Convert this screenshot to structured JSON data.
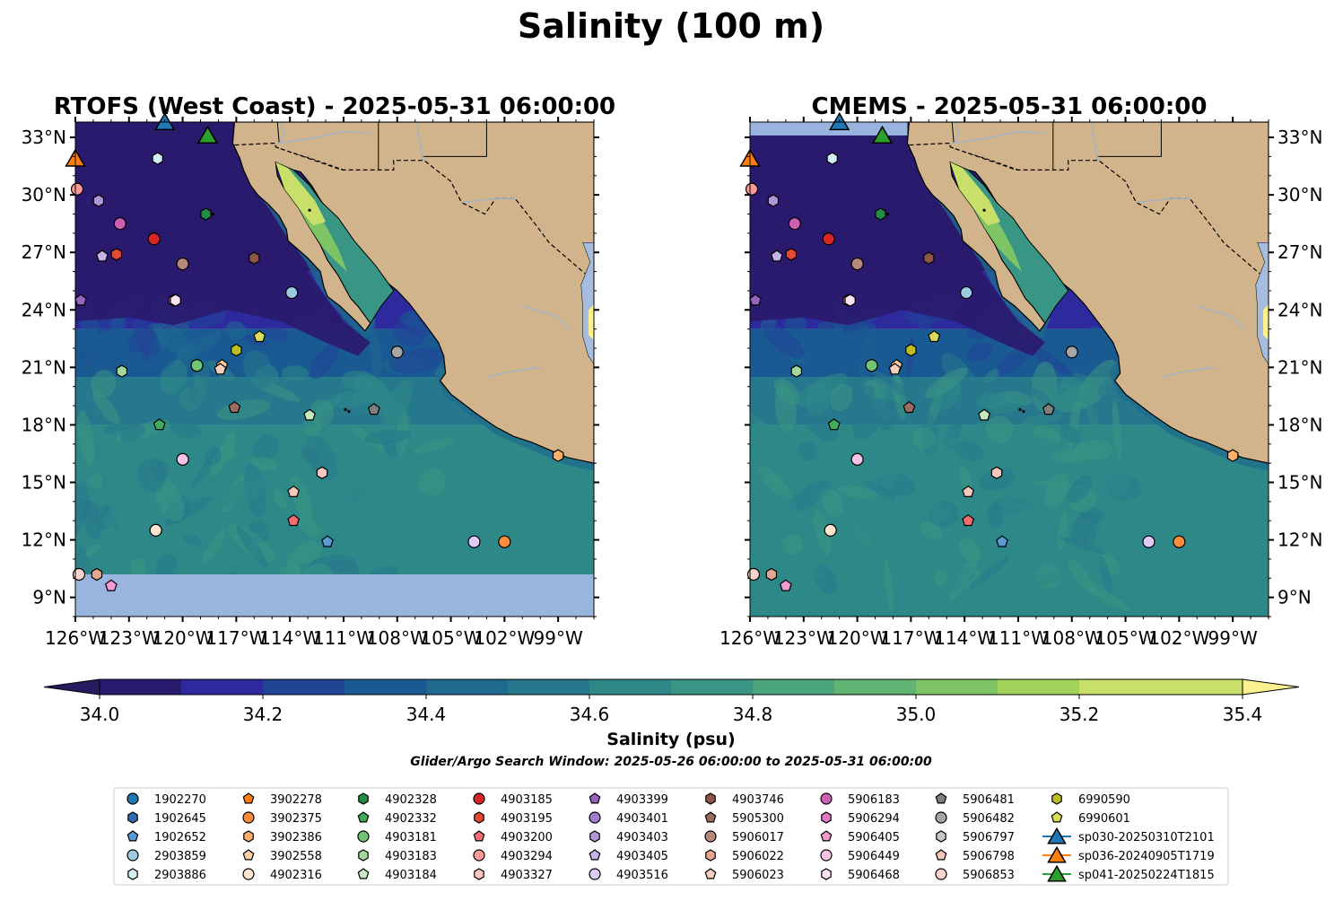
{
  "figure": {
    "title": "Salinity (100 m)",
    "search_window": "Glider/Argo Search Window: 2025-05-26 06:00:00 to 2025-05-31 06:00:00"
  },
  "chart_data": [
    {
      "type": "heatmap",
      "title": "RTOFS (West Coast) - 2025-05-31 06:00:00",
      "xlim": [
        -126,
        -97
      ],
      "ylim": [
        8,
        33.8
      ],
      "x_ticks": [
        "126°W",
        "123°W",
        "120°W",
        "117°W",
        "114°W",
        "111°W",
        "108°W",
        "105°W",
        "102°W",
        "99°W"
      ],
      "x_tick_values": [
        -126,
        -123,
        -120,
        -117,
        -114,
        -111,
        -108,
        -105,
        -102,
        -99
      ],
      "y_ticks": [
        "9°N",
        "12°N",
        "15°N",
        "18°N",
        "21°N",
        "24°N",
        "27°N",
        "30°N",
        "33°N"
      ],
      "y_tick_values": [
        9,
        12,
        15,
        18,
        21,
        24,
        27,
        30,
        33
      ],
      "y_tick_side": "left",
      "no_data_south_of": 10.2
    },
    {
      "type": "heatmap",
      "title": "CMEMS - 2025-05-31 06:00:00",
      "xlim": [
        -126,
        -97
      ],
      "ylim": [
        8,
        33.8
      ],
      "x_ticks": [
        "126°W",
        "123°W",
        "120°W",
        "117°W",
        "114°W",
        "111°W",
        "108°W",
        "105°W",
        "102°W",
        "99°W"
      ],
      "x_tick_values": [
        -126,
        -123,
        -120,
        -117,
        -114,
        -111,
        -108,
        -105,
        -102,
        -99
      ],
      "y_ticks": [
        "9°N",
        "12°N",
        "15°N",
        "18°N",
        "21°N",
        "24°N",
        "27°N",
        "30°N",
        "33°N"
      ],
      "y_tick_values": [
        9,
        12,
        15,
        18,
        21,
        24,
        27,
        30,
        33
      ],
      "y_tick_side": "right",
      "no_data_north_of": 33.1
    }
  ],
  "colorbar": {
    "label": "Salinity (psu)",
    "min": 34.0,
    "max": 35.4,
    "step": 0.1,
    "tick_labels": [
      "34.0",
      "34.2",
      "34.4",
      "34.6",
      "34.8",
      "35.0",
      "35.2",
      "35.4"
    ],
    "tick_values": [
      34.0,
      34.2,
      34.4,
      34.6,
      34.8,
      35.0,
      35.2,
      35.4
    ],
    "colors": [
      "#2a1a6e",
      "#2d2a9e",
      "#214495",
      "#1a5a92",
      "#1f6a8e",
      "#26798c",
      "#2e8888",
      "#3a9684",
      "#4aa57c",
      "#5fb474",
      "#7ec465",
      "#a2d25a",
      "#c8e06a"
    ],
    "under_color": "#281a5e",
    "over_color": "#fbf190"
  },
  "colors": {
    "land": "#d2b48c",
    "nodata": "#9ab4e0",
    "water_light": "#a6bddf",
    "river": "#9ab4d0"
  },
  "floats": [
    {
      "id": "1902270",
      "marker": "circle",
      "color": "#1f77b4",
      "lon": null,
      "lat": null
    },
    {
      "id": "1902645",
      "marker": "hexagon",
      "color": "#2f6fb0",
      "lon": null,
      "lat": null
    },
    {
      "id": "1902652",
      "marker": "pentagon",
      "color": "#5b9bd5",
      "lon": -111.9,
      "lat": 11.9
    },
    {
      "id": "2903859",
      "marker": "circle",
      "color": "#9ecae1",
      "lon": -113.9,
      "lat": 24.9
    },
    {
      "id": "2903886",
      "marker": "hexagon",
      "color": "#d6ecf3",
      "lon": -121.4,
      "lat": 31.9
    },
    {
      "id": "3902278",
      "marker": "pentagon",
      "color": "#ff7f0e",
      "lon": null,
      "lat": null
    },
    {
      "id": "3902375",
      "marker": "circle",
      "color": "#fd8d3c",
      "lon": -102.0,
      "lat": 11.9
    },
    {
      "id": "3902386",
      "marker": "hexagon",
      "color": "#fdae6b",
      "lon": -99.0,
      "lat": 16.4
    },
    {
      "id": "3902558",
      "marker": "pentagon",
      "color": "#fdd0a2",
      "lon": -117.8,
      "lat": 21.1
    },
    {
      "id": "4902316",
      "marker": "circle",
      "color": "#fee6ce",
      "lon": -121.5,
      "lat": 12.5
    },
    {
      "id": "4902328",
      "marker": "hexagon",
      "color": "#238b45",
      "lon": -118.7,
      "lat": 29.0
    },
    {
      "id": "4902332",
      "marker": "pentagon",
      "color": "#41ab5d",
      "lon": -121.3,
      "lat": 18.0
    },
    {
      "id": "4903181",
      "marker": "circle",
      "color": "#74c476",
      "lon": -119.2,
      "lat": 21.1
    },
    {
      "id": "4903183",
      "marker": "hexagon",
      "color": "#a1d99b",
      "lon": -123.4,
      "lat": 20.8
    },
    {
      "id": "4903184",
      "marker": "pentagon",
      "color": "#c7e9c0",
      "lon": -112.9,
      "lat": 18.5
    },
    {
      "id": "4903185",
      "marker": "circle",
      "color": "#d62728",
      "lon": -121.6,
      "lat": 27.7
    },
    {
      "id": "4903195",
      "marker": "hexagon",
      "color": "#e34a33",
      "lon": -123.7,
      "lat": 26.9
    },
    {
      "id": "4903200",
      "marker": "pentagon",
      "color": "#f46d70",
      "lon": -113.8,
      "lat": 13.0
    },
    {
      "id": "4903294",
      "marker": "circle",
      "color": "#fb9a99",
      "lon": -125.9,
      "lat": 30.3
    },
    {
      "id": "4903327",
      "marker": "hexagon",
      "color": "#fcc5c0",
      "lon": -112.2,
      "lat": 15.5
    },
    {
      "id": "4903399",
      "marker": "pentagon",
      "color": "#9467bd",
      "lon": -125.7,
      "lat": 24.5
    },
    {
      "id": "4903401",
      "marker": "circle",
      "color": "#a17cc9",
      "lon": null,
      "lat": null
    },
    {
      "id": "4903403",
      "marker": "hexagon",
      "color": "#b295d6",
      "lon": -124.7,
      "lat": 29.7
    },
    {
      "id": "4903405",
      "marker": "pentagon",
      "color": "#c7b3e5",
      "lon": -124.5,
      "lat": 26.8
    },
    {
      "id": "4903516",
      "marker": "circle",
      "color": "#dccbf2",
      "lon": -103.7,
      "lat": 11.9
    },
    {
      "id": "4903746",
      "marker": "hexagon",
      "color": "#8c564b",
      "lon": -116.0,
      "lat": 26.7
    },
    {
      "id": "5905300",
      "marker": "pentagon",
      "color": "#9c6c5e",
      "lon": -117.1,
      "lat": 18.9
    },
    {
      "id": "5906017",
      "marker": "circle",
      "color": "#b88a7c",
      "lon": -120.0,
      "lat": 26.4
    },
    {
      "id": "5906022",
      "marker": "hexagon",
      "color": "#e3a68e",
      "lon": -124.8,
      "lat": 10.2
    },
    {
      "id": "5906023",
      "marker": "pentagon",
      "color": "#f7cdbd",
      "lon": -117.9,
      "lat": 20.9
    },
    {
      "id": "5906183",
      "marker": "circle",
      "color": "#cc5fb3",
      "lon": -123.5,
      "lat": 28.5
    },
    {
      "id": "5906294",
      "marker": "hexagon",
      "color": "#e377c2",
      "lon": -120.5,
      "lat": 24.5
    },
    {
      "id": "5906405",
      "marker": "pentagon",
      "color": "#f29bd0",
      "lon": -124.0,
      "lat": 9.6
    },
    {
      "id": "5906449",
      "marker": "circle",
      "color": "#f8c3e5",
      "lon": -120.0,
      "lat": 16.2
    },
    {
      "id": "5906468",
      "marker": "hexagon",
      "color": "#fce3f2",
      "lon": -120.4,
      "lat": 24.5
    },
    {
      "id": "5906481",
      "marker": "pentagon",
      "color": "#7f7f7f",
      "lon": -109.3,
      "lat": 18.8
    },
    {
      "id": "5906482",
      "marker": "circle",
      "color": "#a5a5a5",
      "lon": -108.0,
      "lat": 21.8
    },
    {
      "id": "5906797",
      "marker": "hexagon",
      "color": "#c7c7c7",
      "lon": null,
      "lat": null
    },
    {
      "id": "5906798",
      "marker": "pentagon",
      "color": "#f2c8bb",
      "lon": -113.8,
      "lat": 14.5
    },
    {
      "id": "5906853",
      "marker": "circle",
      "color": "#fbd5cc",
      "lon": -125.8,
      "lat": 10.2
    },
    {
      "id": "6990590",
      "marker": "hexagon",
      "color": "#bcbd22",
      "lon": -117.0,
      "lat": 21.9
    },
    {
      "id": "6990601",
      "marker": "pentagon",
      "color": "#dbdb5a",
      "lon": -115.7,
      "lat": 22.6
    }
  ],
  "gliders": [
    {
      "id": "sp030-20250310T2101",
      "marker": "triangle",
      "color": "#1f77b4",
      "lon": -121.0,
      "lat": 33.8
    },
    {
      "id": "sp036-20240905T1719",
      "marker": "triangle",
      "color": "#ff7f0e",
      "lon": -126.0,
      "lat": 31.9
    },
    {
      "id": "sp041-20250224T1815",
      "marker": "triangle",
      "color": "#2ca02c",
      "lon": -118.6,
      "lat": 33.1
    }
  ]
}
